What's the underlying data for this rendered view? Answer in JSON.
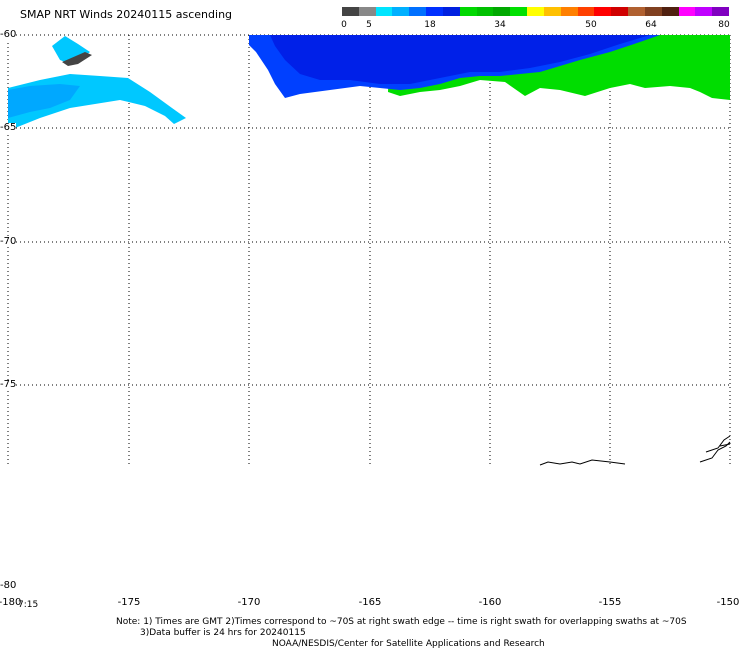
{
  "title": "SMAP NRT Winds 20240115 ascending",
  "colorbar": {
    "labels": [
      "0",
      "5",
      "18",
      "34",
      "50",
      "64",
      "80"
    ],
    "colors": [
      "#444444",
      "#888888",
      "#00e5ff",
      "#00b0ff",
      "#0070ff",
      "#0030ff",
      "#0020e0",
      "#00d800",
      "#00c000",
      "#00a800",
      "#00e000",
      "#ffff00",
      "#ffc000",
      "#ff8000",
      "#ff4000",
      "#ff0000",
      "#d00000",
      "#b06030",
      "#804020",
      "#502010",
      "#ff00ff",
      "#c000ff",
      "#8000c0"
    ]
  },
  "axes": {
    "lon_ticks": [
      "-180",
      "-175",
      "-170",
      "-165",
      "-160",
      "-155",
      "-150"
    ],
    "lat_ticks": [
      "-60",
      "-65",
      "-70",
      "-75",
      "-80"
    ],
    "lon_range": [
      -180,
      -150
    ],
    "lat_range": [
      -80,
      -60
    ]
  },
  "swath_time": "7:15",
  "notes": {
    "line1": "Note: 1) Times are GMT  2)Times correspond to ~70S at right swath edge -- time is right swath for overlapping swaths at ~70S",
    "line2": "3)Data buffer is 24 hrs for 20240115",
    "line3": "NOAA/NESDIS/Center for Satellite Applications and Research"
  },
  "colors": {
    "light_blue": "#00c8ff",
    "sky_blue": "#00a8ff",
    "blue": "#0040ff",
    "deep_blue": "#0020e8",
    "green": "#00dd00",
    "gray": "#444444"
  }
}
